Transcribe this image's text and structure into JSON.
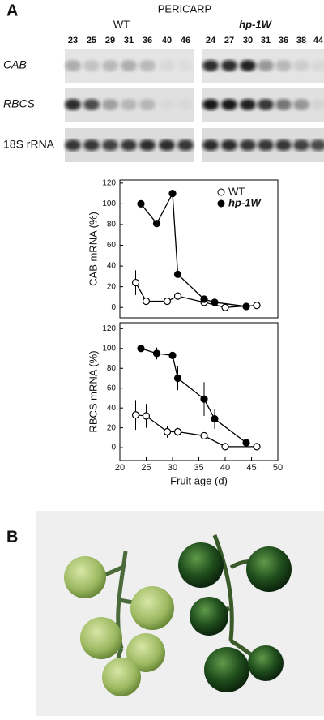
{
  "panel_a": {
    "label": "A",
    "title": "PERICARP",
    "groups": [
      {
        "name": "WT",
        "lanes": [
          "23",
          "25",
          "29",
          "31",
          "36",
          "40",
          "46"
        ]
      },
      {
        "name": "hp-1W",
        "lanes": [
          "24",
          "27",
          "30",
          "31",
          "36",
          "38",
          "44"
        ]
      }
    ],
    "rows": [
      "CAB",
      "RBCS",
      "18S rRNA"
    ]
  },
  "chart_data": [
    {
      "type": "line",
      "ylabel": "CAB mRNA (%)",
      "xlim": [
        20,
        50
      ],
      "ylim": [
        -10,
        123
      ],
      "yticks": [
        0,
        20,
        40,
        60,
        80,
        100,
        120
      ],
      "legend": "upper right",
      "series": [
        {
          "name": "WT",
          "color": "#ffffff",
          "x": [
            23,
            25,
            29,
            31,
            36,
            40,
            46
          ],
          "values": [
            24,
            6,
            6,
            11,
            5,
            0,
            2
          ],
          "errors": [
            12,
            null,
            null,
            null,
            null,
            null,
            null
          ]
        },
        {
          "name": "hp-1W",
          "color": "#000000",
          "x": [
            24,
            27,
            30,
            31,
            36,
            38,
            44
          ],
          "values": [
            100,
            81,
            110,
            32,
            8,
            5,
            1
          ],
          "errors": [
            null,
            null,
            null,
            null,
            null,
            null,
            null
          ]
        }
      ]
    },
    {
      "type": "line",
      "ylabel": "RBCS mRNA (%)",
      "xlabel": "Fruit age (d)",
      "xlim": [
        20,
        50
      ],
      "ylim": [
        -13,
        126
      ],
      "xticks": [
        20,
        25,
        30,
        35,
        40,
        45,
        50
      ],
      "yticks": [
        0,
        20,
        40,
        60,
        80,
        100,
        120
      ],
      "series": [
        {
          "name": "WT",
          "color": "#ffffff",
          "x": [
            23,
            25,
            29,
            31,
            36,
            40,
            46
          ],
          "values": [
            33,
            32,
            16,
            16,
            12,
            1,
            1
          ],
          "errors": [
            15,
            12,
            6,
            4,
            null,
            null,
            null
          ]
        },
        {
          "name": "hp-1W",
          "color": "#000000",
          "x": [
            24,
            27,
            30,
            31,
            36,
            38,
            44
          ],
          "values": [
            100,
            95,
            93,
            70,
            49,
            29,
            5
          ],
          "errors": [
            null,
            6,
            null,
            12,
            17,
            10,
            null
          ]
        }
      ]
    }
  ],
  "panel_b": {
    "label": "B"
  }
}
